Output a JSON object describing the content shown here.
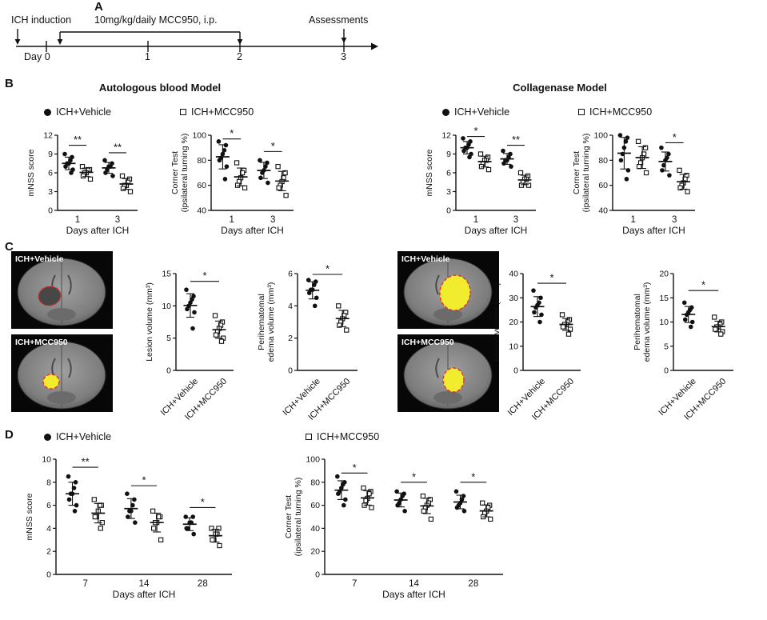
{
  "panels": {
    "a": {
      "label": "A",
      "ich_induction": "ICH induction",
      "treatment": "10mg/kg/daily MCC950, i.p.",
      "assessments": "Assessments",
      "day_labels": [
        "Day 0",
        "1",
        "2",
        "3"
      ]
    },
    "b": {
      "label": "B",
      "autologous_title": "Autologous blood Model",
      "collagenase_title": "Collagenase Model",
      "legend_vehicle": "ICH+Vehicle",
      "legend_mcc950": "ICH+MCC950"
    },
    "c": {
      "label": "C",
      "mri": {
        "autologous_vehicle": "ICH+Vehicle",
        "autologous_mcc950": "ICH+MCC950",
        "collagenase_vehicle": "ICH+Vehicle",
        "collagenase_mcc950": "ICH+MCC950"
      }
    },
    "d": {
      "label": "D",
      "legend_vehicle": "ICH+Vehicle",
      "legend_mcc950": "ICH+MCC950"
    },
    "colors": {
      "lesion_fill": "#f1ec2e",
      "lesion_outline": "#e03131",
      "marker": "#111111"
    }
  },
  "chart_data": [
    {
      "id": "autologous_mnss",
      "type": "scatter",
      "panel": "B",
      "model": "Autologous blood Model",
      "ylabel": [
        "mNSS score"
      ],
      "xlabel": "Days after ICH",
      "ylim": [
        0,
        12
      ],
      "yticks": [
        0,
        3,
        6,
        9,
        12
      ],
      "categories": [
        "1",
        "3"
      ],
      "rotate_xticks": false,
      "groups": [
        {
          "series": "ICH+Vehicle",
          "cat": 0,
          "dx": -0.22,
          "marker": "circle",
          "values": [
            9,
            8.5,
            8,
            7.5,
            7.5,
            7,
            6.5,
            6
          ]
        },
        {
          "series": "ICH+MCC950",
          "cat": 0,
          "dx": 0.22,
          "marker": "square",
          "values": [
            7,
            6.5,
            6.5,
            6,
            6,
            5.5,
            5
          ]
        },
        {
          "series": "ICH+Vehicle",
          "cat": 1,
          "dx": -0.22,
          "marker": "circle",
          "values": [
            8,
            7.5,
            7,
            7,
            6.5,
            6,
            5.5
          ]
        },
        {
          "series": "ICH+MCC950",
          "cat": 1,
          "dx": 0.22,
          "marker": "square",
          "values": [
            5.5,
            5,
            4.5,
            4,
            4,
            3.5,
            3
          ]
        }
      ],
      "sig": [
        {
          "x1": -0.22,
          "x2": 0.22,
          "y": 10.4,
          "label": "**"
        },
        {
          "x1": 0.78,
          "x2": 1.22,
          "y": 9.2,
          "label": "**"
        }
      ]
    },
    {
      "id": "autologous_corner",
      "type": "scatter",
      "panel": "B",
      "model": "Autologous blood Model",
      "ylabel": [
        "Corner Test",
        "(ipsilateral turning %)"
      ],
      "xlabel": "Days after ICH",
      "ylim": [
        40,
        100
      ],
      "yticks": [
        40,
        60,
        80,
        100
      ],
      "categories": [
        "1",
        "3"
      ],
      "rotate_xticks": false,
      "groups": [
        {
          "series": "ICH+Vehicle",
          "cat": 0,
          "dx": -0.22,
          "marker": "circle",
          "values": [
            95,
            92,
            88,
            85,
            82,
            80,
            75,
            65
          ]
        },
        {
          "series": "ICH+MCC950",
          "cat": 0,
          "dx": 0.22,
          "marker": "square",
          "values": [
            78,
            72,
            70,
            66,
            63,
            60,
            58
          ]
        },
        {
          "series": "ICH+Vehicle",
          "cat": 1,
          "dx": -0.22,
          "marker": "circle",
          "values": [
            80,
            78,
            75,
            72,
            70,
            66,
            62
          ]
        },
        {
          "series": "ICH+MCC950",
          "cat": 1,
          "dx": 0.22,
          "marker": "square",
          "values": [
            75,
            70,
            66,
            63,
            60,
            58,
            52
          ]
        }
      ],
      "sig": [
        {
          "x1": -0.22,
          "x2": 0.22,
          "y": 97,
          "label": "*"
        },
        {
          "x1": 0.78,
          "x2": 1.22,
          "y": 87,
          "label": "*"
        }
      ]
    },
    {
      "id": "collagenase_mnss",
      "type": "scatter",
      "panel": "B",
      "model": "Collagenase Model",
      "ylabel": [
        "mNSS score"
      ],
      "xlabel": "Days after ICH",
      "ylim": [
        0,
        12
      ],
      "yticks": [
        0,
        3,
        6,
        9,
        12
      ],
      "categories": [
        "1",
        "3"
      ],
      "rotate_xticks": false,
      "groups": [
        {
          "series": "ICH+Vehicle",
          "cat": 0,
          "dx": -0.22,
          "marker": "circle",
          "values": [
            11.5,
            11,
            10.5,
            10,
            10,
            9.5,
            9,
            8.5
          ]
        },
        {
          "series": "ICH+MCC950",
          "cat": 0,
          "dx": 0.22,
          "marker": "square",
          "values": [
            9,
            8.5,
            8,
            8,
            7.5,
            7,
            6.5
          ]
        },
        {
          "series": "ICH+Vehicle",
          "cat": 1,
          "dx": -0.22,
          "marker": "circle",
          "values": [
            9.5,
            9,
            8.5,
            8,
            8,
            7.5,
            7
          ]
        },
        {
          "series": "ICH+MCC950",
          "cat": 1,
          "dx": 0.22,
          "marker": "square",
          "values": [
            6,
            5.5,
            5,
            5,
            4.5,
            4,
            4
          ]
        }
      ],
      "sig": [
        {
          "x1": -0.22,
          "x2": 0.22,
          "y": 11.8,
          "label": "*"
        },
        {
          "x1": 0.78,
          "x2": 1.22,
          "y": 10.4,
          "label": "**"
        }
      ]
    },
    {
      "id": "collagenase_corner",
      "type": "scatter",
      "panel": "B",
      "model": "Collagenase Model",
      "ylabel": [
        "Corner Test",
        "(ipsilateral turning %)"
      ],
      "xlabel": "Days after ICH",
      "ylim": [
        40,
        100
      ],
      "yticks": [
        40,
        60,
        80,
        100
      ],
      "categories": [
        "1",
        "3"
      ],
      "rotate_xticks": false,
      "groups": [
        {
          "series": "ICH+Vehicle",
          "cat": 0,
          "dx": -0.22,
          "marker": "circle",
          "values": [
            100,
            98,
            95,
            90,
            85,
            80,
            72,
            65
          ]
        },
        {
          "series": "ICH+MCC950",
          "cat": 0,
          "dx": 0.22,
          "marker": "square",
          "values": [
            95,
            90,
            85,
            82,
            78,
            75,
            70
          ]
        },
        {
          "series": "ICH+Vehicle",
          "cat": 1,
          "dx": -0.22,
          "marker": "circle",
          "values": [
            90,
            85,
            82,
            80,
            76,
            72,
            68
          ]
        },
        {
          "series": "ICH+MCC950",
          "cat": 1,
          "dx": 0.22,
          "marker": "square",
          "values": [
            72,
            68,
            65,
            62,
            60,
            58,
            55
          ]
        }
      ],
      "sig": [
        {
          "x1": 0.78,
          "x2": 1.22,
          "y": 94,
          "label": "*"
        }
      ]
    },
    {
      "id": "autologous_lesion",
      "type": "scatter",
      "panel": "C",
      "model": "Autologous blood Model",
      "ylabel": [
        "Lesion volume (mm³)"
      ],
      "xlabel": "",
      "ylim": [
        0,
        15
      ],
      "yticks": [
        0,
        5,
        10,
        15
      ],
      "categories": [
        "ICH+Vehicle",
        "ICH+MCC950"
      ],
      "rotate_xticks": true,
      "groups": [
        {
          "series": "ICH+Vehicle",
          "cat": 0,
          "dx": 0,
          "marker": "circle",
          "values": [
            12.5,
            11.5,
            11,
            10.5,
            10,
            9.5,
            9,
            6.5
          ]
        },
        {
          "series": "ICH+MCC950",
          "cat": 1,
          "dx": 0,
          "marker": "square",
          "values": [
            8.5,
            7.5,
            7,
            6.5,
            6,
            5.5,
            5,
            4.5
          ]
        }
      ],
      "sig": [
        {
          "x1": 0,
          "x2": 1,
          "y": 13.8,
          "label": "*"
        }
      ]
    },
    {
      "id": "autologous_edema",
      "type": "scatter",
      "panel": "C",
      "model": "Autologous blood Model",
      "ylabel": [
        "Perihematomal",
        "edema volume (mm³)"
      ],
      "xlabel": "",
      "ylim": [
        0,
        6
      ],
      "yticks": [
        0,
        2,
        4,
        6
      ],
      "categories": [
        "ICH+Vehicle",
        "ICH+MCC950"
      ],
      "rotate_xticks": true,
      "groups": [
        {
          "series": "ICH+Vehicle",
          "cat": 0,
          "dx": 0,
          "marker": "circle",
          "values": [
            5.6,
            5.5,
            5.3,
            5,
            5,
            4.8,
            4.5,
            4
          ]
        },
        {
          "series": "ICH+MCC950",
          "cat": 1,
          "dx": 0,
          "marker": "square",
          "values": [
            4,
            3.6,
            3.4,
            3.2,
            3,
            2.8,
            2.5
          ]
        }
      ],
      "sig": [
        {
          "x1": 0,
          "x2": 1,
          "y": 5.95,
          "label": "*"
        }
      ]
    },
    {
      "id": "collagenase_lesion",
      "type": "scatter",
      "panel": "C",
      "model": "Collagenase Model",
      "ylabel": [
        "Lesion volume (mm³)"
      ],
      "xlabel": "",
      "ylim": [
        0,
        40
      ],
      "yticks": [
        0,
        10,
        20,
        30,
        40
      ],
      "categories": [
        "ICH+Vehicle",
        "ICH+MCC950"
      ],
      "rotate_xticks": true,
      "groups": [
        {
          "series": "ICH+Vehicle",
          "cat": 0,
          "dx": 0,
          "marker": "circle",
          "values": [
            33,
            30,
            28,
            27,
            26,
            24,
            23,
            20
          ]
        },
        {
          "series": "ICH+MCC950",
          "cat": 1,
          "dx": 0,
          "marker": "square",
          "values": [
            23,
            21,
            20,
            19,
            19,
            18,
            17,
            15
          ]
        }
      ],
      "sig": [
        {
          "x1": 0,
          "x2": 1,
          "y": 36,
          "label": "*"
        }
      ]
    },
    {
      "id": "collagenase_edema",
      "type": "scatter",
      "panel": "C",
      "model": "Collagenase Model",
      "ylabel": [
        "Perihematomal",
        "edema volume (mm³)"
      ],
      "xlabel": "",
      "ylim": [
        0,
        20
      ],
      "yticks": [
        0,
        5,
        10,
        15,
        20
      ],
      "categories": [
        "ICH+Vehicle",
        "ICH+MCC950"
      ],
      "rotate_xticks": true,
      "groups": [
        {
          "series": "ICH+Vehicle",
          "cat": 0,
          "dx": 0,
          "marker": "circle",
          "values": [
            14,
            13,
            12.5,
            12,
            11.5,
            10.5,
            10,
            9
          ]
        },
        {
          "series": "ICH+MCC950",
          "cat": 1,
          "dx": 0,
          "marker": "square",
          "values": [
            11,
            10,
            9.5,
            9,
            9,
            8.5,
            8,
            7.5
          ]
        }
      ],
      "sig": [
        {
          "x1": 0,
          "x2": 1,
          "y": 16.5,
          "label": "*"
        }
      ]
    },
    {
      "id": "longterm_mnss",
      "type": "scatter",
      "panel": "D",
      "model": "Collagenase Model long-term",
      "ylabel": [
        "mNSS score"
      ],
      "xlabel": "Days after ICH",
      "ylim": [
        0,
        10
      ],
      "yticks": [
        0,
        2,
        4,
        6,
        8,
        10
      ],
      "categories": [
        "7",
        "14",
        "28"
      ],
      "rotate_xticks": false,
      "groups": [
        {
          "series": "ICH+Vehicle",
          "cat": 0,
          "dx": -0.22,
          "marker": "circle",
          "values": [
            8.5,
            8,
            7.5,
            7,
            7,
            6.5,
            6,
            5.5
          ]
        },
        {
          "series": "ICH+MCC950",
          "cat": 0,
          "dx": 0.22,
          "marker": "square",
          "values": [
            6.5,
            6,
            6,
            5.5,
            5,
            5,
            4.5,
            4
          ]
        },
        {
          "series": "ICH+Vehicle",
          "cat": 1,
          "dx": -0.22,
          "marker": "circle",
          "values": [
            7,
            6.5,
            6,
            5.5,
            5.5,
            5,
            4.5
          ]
        },
        {
          "series": "ICH+MCC950",
          "cat": 1,
          "dx": 0.22,
          "marker": "square",
          "values": [
            5.5,
            5,
            5,
            4.5,
            4.5,
            4,
            3
          ]
        },
        {
          "series": "ICH+Vehicle",
          "cat": 2,
          "dx": -0.22,
          "marker": "circle",
          "values": [
            5,
            5,
            4.5,
            4.5,
            4,
            4,
            3.5
          ]
        },
        {
          "series": "ICH+MCC950",
          "cat": 2,
          "dx": 0.22,
          "marker": "square",
          "values": [
            4,
            4,
            3.5,
            3.5,
            3,
            3,
            2.5
          ]
        }
      ],
      "sig": [
        {
          "x1": -0.22,
          "x2": 0.22,
          "y": 9.3,
          "label": "**"
        },
        {
          "x1": 0.78,
          "x2": 1.22,
          "y": 7.7,
          "label": "*"
        },
        {
          "x1": 1.78,
          "x2": 2.22,
          "y": 5.8,
          "label": "*"
        }
      ]
    },
    {
      "id": "longterm_corner",
      "type": "scatter",
      "panel": "D",
      "model": "Collagenase Model long-term",
      "ylabel": [
        "Corner Test",
        "(ipsilateral turning %)"
      ],
      "xlabel": "Days after ICH",
      "ylim": [
        0,
        100
      ],
      "yticks": [
        0,
        20,
        40,
        60,
        80,
        100
      ],
      "categories": [
        "7",
        "14",
        "28"
      ],
      "rotate_xticks": false,
      "groups": [
        {
          "series": "ICH+Vehicle",
          "cat": 0,
          "dx": -0.22,
          "marker": "circle",
          "values": [
            85,
            80,
            78,
            75,
            72,
            70,
            65,
            60
          ]
        },
        {
          "series": "ICH+MCC950",
          "cat": 0,
          "dx": 0.22,
          "marker": "square",
          "values": [
            75,
            72,
            70,
            66,
            64,
            60,
            58
          ]
        },
        {
          "series": "ICH+Vehicle",
          "cat": 1,
          "dx": -0.22,
          "marker": "circle",
          "values": [
            72,
            70,
            68,
            65,
            62,
            60,
            55
          ]
        },
        {
          "series": "ICH+MCC950",
          "cat": 1,
          "dx": 0.22,
          "marker": "square",
          "values": [
            68,
            65,
            62,
            60,
            58,
            55,
            48
          ]
        },
        {
          "series": "ICH+Vehicle",
          "cat": 2,
          "dx": -0.22,
          "marker": "circle",
          "values": [
            72,
            68,
            65,
            62,
            60,
            58,
            55
          ]
        },
        {
          "series": "ICH+MCC950",
          "cat": 2,
          "dx": 0.22,
          "marker": "square",
          "values": [
            62,
            60,
            58,
            55,
            53,
            50,
            48
          ]
        }
      ],
      "sig": [
        {
          "x1": -0.22,
          "x2": 0.22,
          "y": 88,
          "label": "*"
        },
        {
          "x1": 0.78,
          "x2": 1.22,
          "y": 80,
          "label": "*"
        },
        {
          "x1": 1.78,
          "x2": 2.22,
          "y": 80,
          "label": "*"
        }
      ]
    }
  ]
}
